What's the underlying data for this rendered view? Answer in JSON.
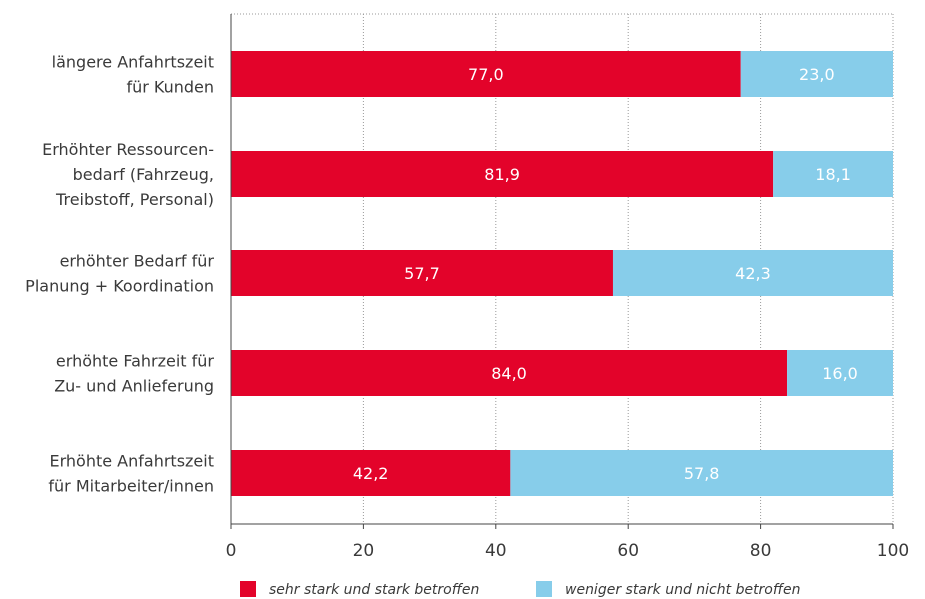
{
  "chart_data": {
    "type": "bar",
    "orientation": "horizontal",
    "stacked": true,
    "categories": [
      [
        "längere Anfahrtszeit",
        "für Kunden"
      ],
      [
        "Erhöhter Ressourcen-",
        "bedarf (Fahrzeug,",
        "Treibstoff, Personal)"
      ],
      [
        "erhöhter Bedarf für",
        "Planung + Koordination"
      ],
      [
        "erhöhte Fahrzeit für",
        "Zu- und Anlieferung"
      ],
      [
        "Erhöhte Anfahrtszeit",
        "für Mitarbeiter/innen"
      ]
    ],
    "series": [
      {
        "name": "sehr stark und stark betroffen",
        "color": "#e3032a",
        "values": [
          77.0,
          81.9,
          57.7,
          84.0,
          42.2
        ],
        "labels": [
          "77,0",
          "81,9",
          "57,7",
          "84,0",
          "42,2"
        ]
      },
      {
        "name": "weniger stark und nicht betroffen",
        "color": "#87cdea",
        "values": [
          23.0,
          18.1,
          42.3,
          16.0,
          57.8
        ],
        "labels": [
          "23,0",
          "18,1",
          "42,3",
          "16,0",
          "57,8"
        ]
      }
    ],
    "xlim": [
      0,
      100
    ],
    "xticks": [
      0,
      20,
      40,
      60,
      80,
      100
    ],
    "xtick_labels": [
      "0",
      "20",
      "40",
      "60",
      "80",
      "100"
    ],
    "grid": true,
    "legend_position": "bottom"
  }
}
